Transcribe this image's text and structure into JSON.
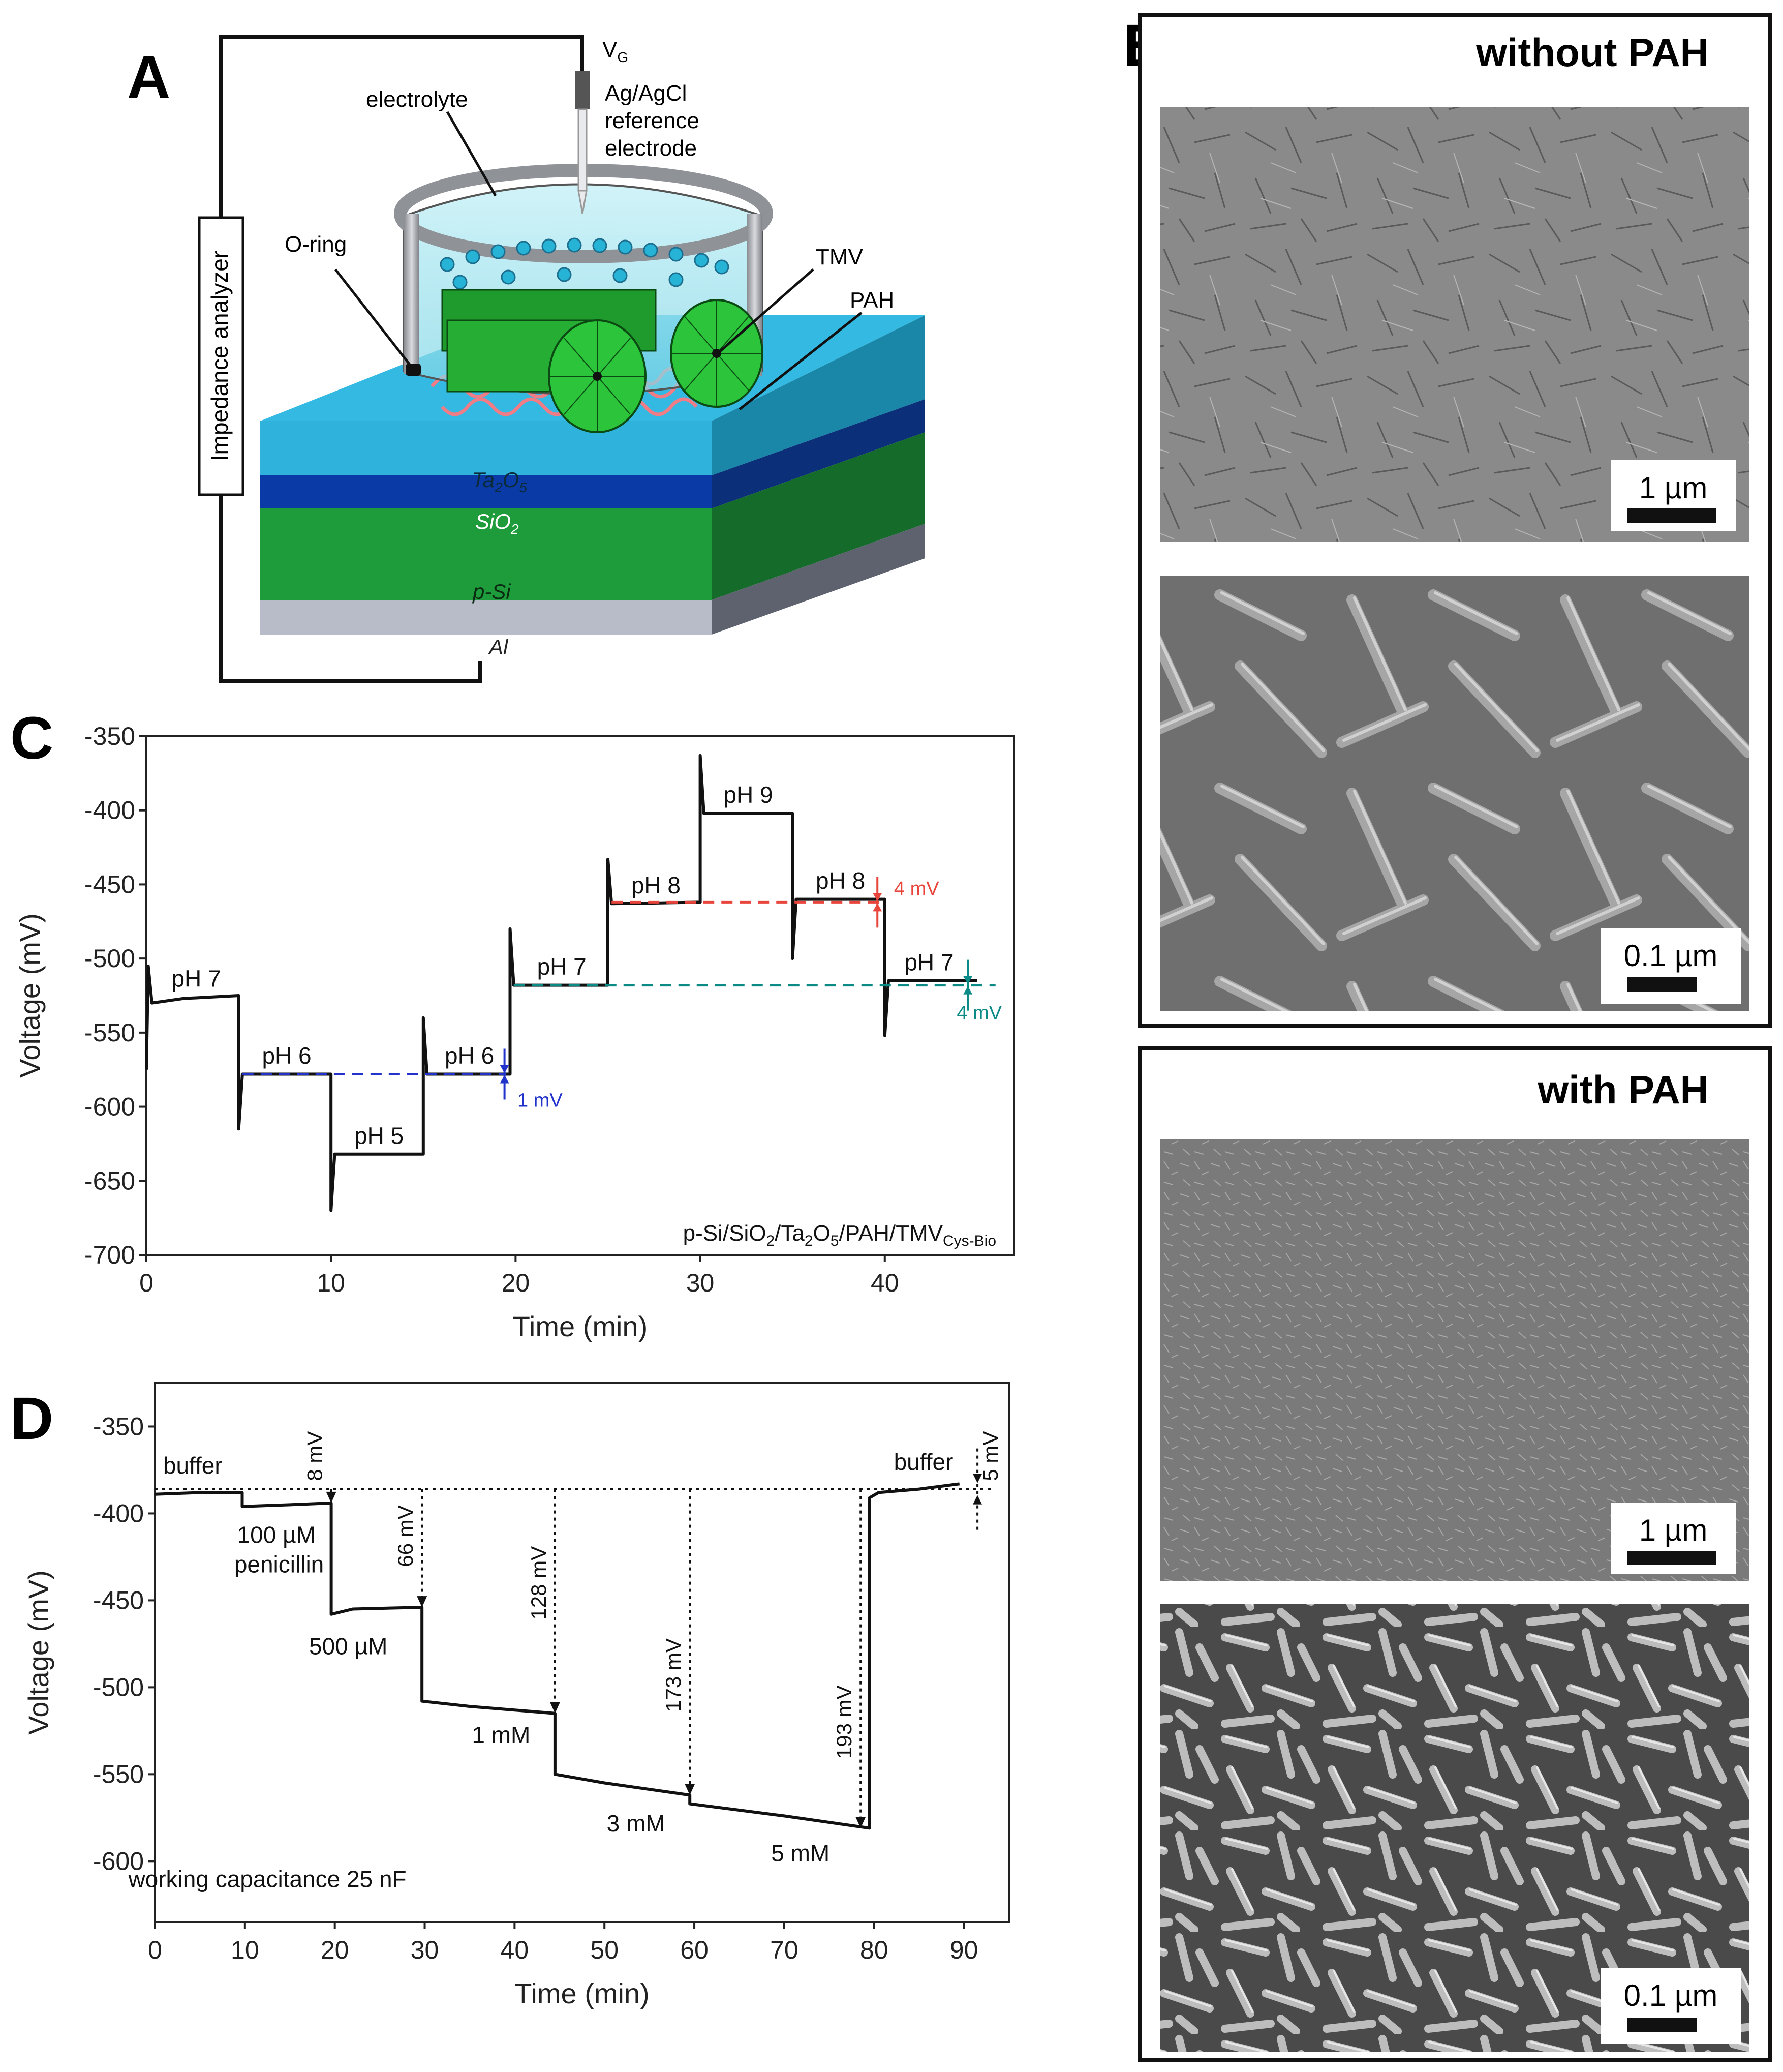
{
  "panel_a": {
    "letter": "A",
    "labels": {
      "vg": "V",
      "vg_sub": "G",
      "ref1": "Ag/AgCl",
      "ref2": "reference",
      "ref3": "electrode",
      "electrolyte": "electrolyte",
      "oring": "O-ring",
      "impedance": "Impedance analyzer",
      "tmv": "TMV",
      "pah": "PAH",
      "ta": "Ta",
      "ta_sub1": "2",
      "ta_o": "O",
      "ta_sub2": "5",
      "sio": "SiO",
      "sio_sub": "2",
      "psi": "p-Si",
      "al": "Al"
    },
    "colors": {
      "ta2o5": "#29b6e0",
      "sio2": "#0a3aa6",
      "psi": "#1e9b3a",
      "al": "#b8bcc8",
      "tmv": "#2bc43b",
      "pah": "#f07c86"
    }
  },
  "panel_b": {
    "letter": "B",
    "without": {
      "title": "without PAH",
      "scale_top": "1 µm",
      "scale_bottom": "0.1 µm"
    },
    "with": {
      "title": "with PAH",
      "scale_top": "1 µm",
      "scale_bottom": "0.1 µm"
    }
  },
  "chart_data": [
    {
      "panel": "C",
      "type": "line",
      "xlabel": "Time (min)",
      "ylabel": "Voltage (mV)",
      "xlim": [
        0,
        47
      ],
      "ylim": [
        -700,
        -350
      ],
      "xticks": [
        "0",
        "10",
        "20",
        "30",
        "40"
      ],
      "xtick_values": [
        0,
        10,
        20,
        30,
        40
      ],
      "yticks": [
        "-350",
        "-400",
        "-450",
        "-500",
        "-550",
        "-600",
        "-650",
        "-700"
      ],
      "ytick_values": [
        -350,
        -400,
        -450,
        -500,
        -550,
        -600,
        -650,
        -700
      ],
      "series": [
        {
          "points": [
            [
              0,
              -575
            ],
            [
              0.1,
              -505
            ],
            [
              0.3,
              -530
            ],
            [
              2,
              -527
            ],
            [
              5,
              -525
            ],
            [
              5,
              -615
            ],
            [
              5.2,
              -578
            ],
            [
              10,
              -578
            ],
            [
              10,
              -670
            ],
            [
              10.2,
              -632
            ],
            [
              15,
              -632
            ],
            [
              15,
              -540
            ],
            [
              15.2,
              -578
            ],
            [
              19.7,
              -578
            ],
            [
              19.7,
              -480
            ],
            [
              19.9,
              -518
            ],
            [
              25,
              -518
            ],
            [
              25,
              -433
            ],
            [
              25.2,
              -463
            ],
            [
              30,
              -462
            ],
            [
              30,
              -363
            ],
            [
              30.2,
              -402
            ],
            [
              35,
              -402
            ],
            [
              35,
              -500
            ],
            [
              35.2,
              -460
            ],
            [
              40,
              -460
            ],
            [
              40,
              -552
            ],
            [
              40.2,
              -515
            ],
            [
              45,
              -515
            ]
          ]
        }
      ],
      "annotations": [
        {
          "text": "pH 7",
          "x": 2.7,
          "y": -519
        },
        {
          "text": "pH 6",
          "x": 7.6,
          "y": -571
        },
        {
          "text": "pH 5",
          "x": 12.6,
          "y": -625
        },
        {
          "text": "pH 6",
          "x": 17.5,
          "y": -571
        },
        {
          "text": "pH 7",
          "x": 22.5,
          "y": -511
        },
        {
          "text": "pH 8",
          "x": 27.6,
          "y": -456
        },
        {
          "text": "pH 9",
          "x": 32.6,
          "y": -395
        },
        {
          "text": "pH 8",
          "x": 37.6,
          "y": -453
        },
        {
          "text": "pH 7",
          "x": 42.4,
          "y": -508
        }
      ],
      "reference_lines": [
        {
          "y": -578,
          "x0": 5.2,
          "x1": 19.5,
          "color": "#2233cc",
          "label": "1 mV",
          "label_x": 20.1,
          "label_y": -600,
          "arrow_x": 19.4
        },
        {
          "y": -462,
          "x0": 25.2,
          "x1": 39.8,
          "color": "#e8453c",
          "label": "4 mV",
          "label_x": 40.5,
          "label_y": -457,
          "arrow_x": 39.6
        },
        {
          "y": -518,
          "x0": 19.9,
          "x1": 46,
          "color": "#0b8a86",
          "label": "4 mV",
          "label_x": 43.9,
          "label_y": -541,
          "arrow_x": 44.5
        }
      ],
      "sample_label": {
        "main": "p-Si/SiO",
        "s1": "2",
        "mid1": "/Ta",
        "s2": "2",
        "mid2": "O",
        "s3": "5",
        "mid3": "/PAH/TMV",
        "sub": "Cys-Bio"
      }
    },
    {
      "panel": "D",
      "type": "line",
      "xlabel": "Time (min)",
      "ylabel": "Voltage (mV)",
      "xlim": [
        0,
        95
      ],
      "ylim": [
        -635,
        -325
      ],
      "xticks": [
        "0",
        "10",
        "20",
        "30",
        "40",
        "50",
        "60",
        "70",
        "80",
        "90"
      ],
      "xtick_values": [
        0,
        10,
        20,
        30,
        40,
        50,
        60,
        70,
        80,
        90
      ],
      "yticks": [
        "-350",
        "-400",
        "-450",
        "-500",
        "-550",
        "-600"
      ],
      "ytick_values": [
        -350,
        -400,
        -450,
        -500,
        -550,
        -600
      ],
      "series": [
        {
          "points": [
            [
              0,
              -389
            ],
            [
              5,
              -388
            ],
            [
              9.7,
              -388
            ],
            [
              9.7,
              -396
            ],
            [
              15,
              -395
            ],
            [
              19.6,
              -394
            ],
            [
              19.6,
              -458
            ],
            [
              22,
              -455
            ],
            [
              29.7,
              -454
            ],
            [
              29.7,
              -508
            ],
            [
              35,
              -511
            ],
            [
              44.5,
              -515
            ],
            [
              44.5,
              -550
            ],
            [
              50,
              -555
            ],
            [
              59.5,
              -562
            ],
            [
              59.5,
              -567
            ],
            [
              70,
              -574
            ],
            [
              79.5,
              -581
            ],
            [
              79.5,
              -391
            ],
            [
              80.5,
              -388
            ],
            [
              85,
              -386
            ],
            [
              89.5,
              -383
            ]
          ]
        }
      ],
      "baseline": -386,
      "annotations": [
        {
          "text": "buffer",
          "x": 4.2,
          "y": -377
        },
        {
          "text": "100 µM",
          "x": 13.5,
          "y": -417
        },
        {
          "text": "penicillin",
          "x": 13.8,
          "y": -434
        },
        {
          "text": "500 µM",
          "x": 21.5,
          "y": -481
        },
        {
          "text": "1 mM",
          "x": 38.5,
          "y": -532
        },
        {
          "text": "3 mM",
          "x": 53.5,
          "y": -583
        },
        {
          "text": "5 mM",
          "x": 71.8,
          "y": -600
        },
        {
          "text": "buffer",
          "x": 85.5,
          "y": -375
        },
        {
          "text": "working capacitance 25 nF",
          "x": 12.5,
          "y": -615
        }
      ],
      "drops": [
        {
          "label": "8 mV",
          "x": 19.6,
          "y_end": -394,
          "label_y": -367
        },
        {
          "label": "66 mV",
          "x": 29.7,
          "y_end": -454,
          "label_y": -413
        },
        {
          "label": "128 mV",
          "x": 44.5,
          "y_end": -515,
          "label_y": -440
        },
        {
          "label": "173 mV",
          "x": 59.5,
          "y_end": -562,
          "label_y": -493
        },
        {
          "label": "193 mV",
          "x": 78.5,
          "y_end": -581,
          "label_y": -520
        }
      ],
      "return_label": {
        "label": "5 mV",
        "x": 91.5,
        "y": -367
      }
    }
  ]
}
